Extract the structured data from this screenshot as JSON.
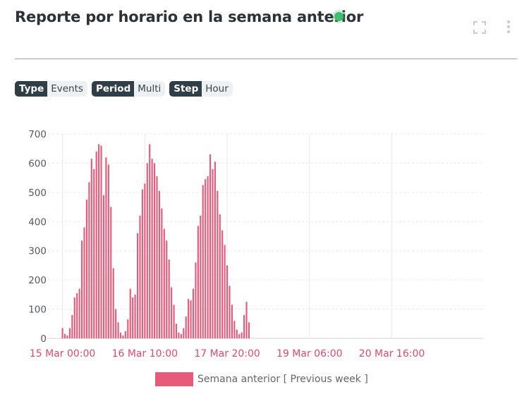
{
  "header": {
    "title": "Reporte por horario en la semana anterior",
    "status_color": "#3fbf6f",
    "icons": [
      "expand-icon",
      "more-vertical-icon"
    ]
  },
  "tags": [
    {
      "key": "Type",
      "value": "Events"
    },
    {
      "key": "Period",
      "value": "Multi"
    },
    {
      "key": "Step",
      "value": "Hour"
    }
  ],
  "chart_data": {
    "type": "bar",
    "title": "",
    "xlabel": "",
    "ylabel": "",
    "ylim": [
      0,
      700
    ],
    "yticks": [
      0,
      100,
      200,
      300,
      400,
      500,
      600,
      700
    ],
    "xticks": [
      "15 Mar 00:00",
      "16 Mar 10:00",
      "17 Mar 20:00",
      "19 Mar 06:00",
      "20 Mar 16:00"
    ],
    "xrange_hours": [
      -6,
      174
    ],
    "grid": true,
    "legend_position": "bottom",
    "bar_color": "#e85a79",
    "series": [
      {
        "name": "Semana anterior [ Previous week ]",
        "x_start": "15 Mar 00:00",
        "step": "hour",
        "values": [
          35,
          15,
          10,
          35,
          80,
          140,
          155,
          170,
          335,
          380,
          475,
          535,
          615,
          580,
          640,
          665,
          660,
          490,
          620,
          595,
          450,
          240,
          100,
          55,
          20,
          10,
          25,
          65,
          170,
          140,
          150,
          360,
          420,
          510,
          530,
          600,
          665,
          615,
          600,
          555,
          505,
          445,
          375,
          335,
          270,
          175,
          115,
          50,
          20,
          15,
          35,
          75,
          135,
          130,
          170,
          260,
          385,
          420,
          525,
          545,
          555,
          630,
          580,
          605,
          505,
          425,
          370,
          320,
          250,
          180,
          115,
          60,
          30,
          15,
          20,
          80,
          125,
          55
        ]
      }
    ]
  },
  "legend": {
    "label": "Semana anterior [ Previous week ]"
  }
}
